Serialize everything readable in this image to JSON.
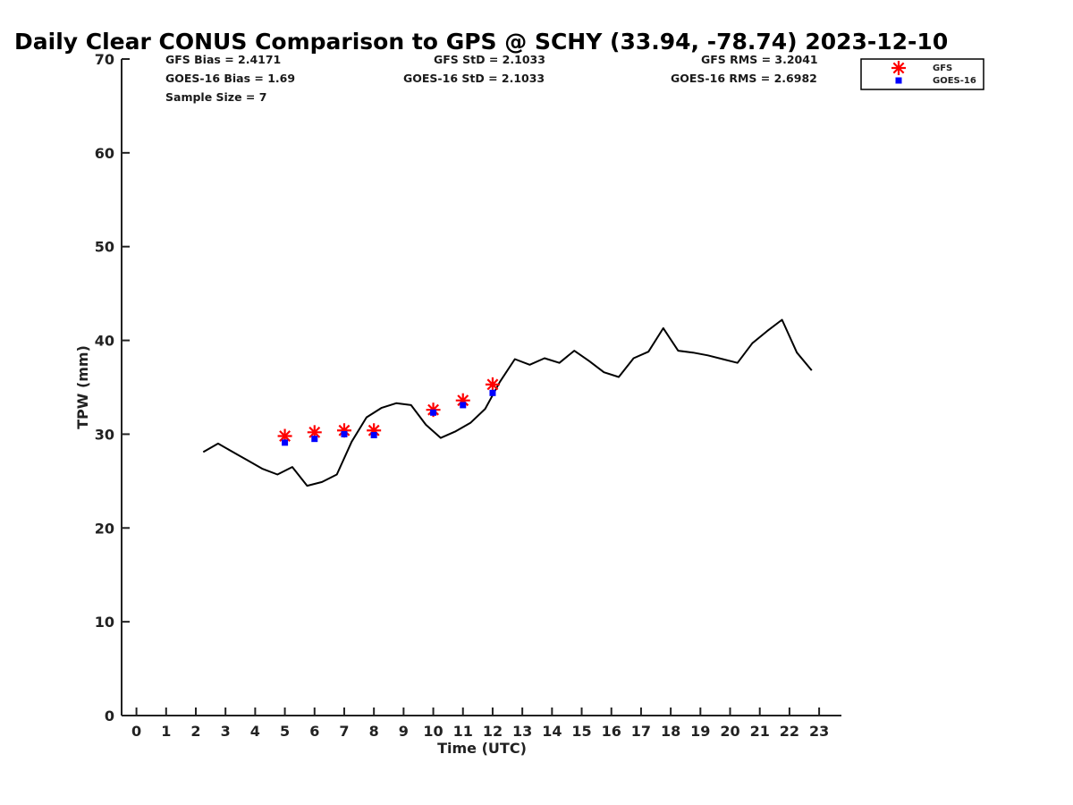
{
  "title": "Daily Clear CONUS Comparison to GPS @ SCHY (33.94, -78.74) 2023-12-10",
  "stats": {
    "gfs_bias": "GFS Bias = 2.4171",
    "goes_bias": "GOES-16 Bias = 1.69",
    "sample_size": "Sample Size = 7",
    "gfs_std": "GFS StD = 2.1033",
    "goes_std": "GOES-16 StD = 2.1033",
    "gfs_rms": "GFS RMS = 3.2041",
    "goes_rms": "GOES-16 RMS = 2.6982"
  },
  "colors": {
    "gps_line": "#000000",
    "gfs_marker": "#ff0000",
    "goes_marker": "#0000ff"
  },
  "chart_data": {
    "type": "line",
    "xlabel": "Time (UTC)",
    "ylabel": "TPW (mm)",
    "xlim": [
      -0.5,
      23.75
    ],
    "ylim": [
      0,
      70
    ],
    "x_ticks": [
      0,
      1,
      2,
      3,
      4,
      5,
      6,
      7,
      8,
      9,
      10,
      11,
      12,
      13,
      14,
      15,
      16,
      17,
      18,
      19,
      20,
      21,
      22,
      23
    ],
    "y_ticks": [
      0,
      10,
      20,
      30,
      40,
      50,
      60,
      70
    ],
    "grid": false,
    "legend_position": "top-right",
    "series": [
      {
        "marker": "line",
        "x": [
          2.25,
          2.75,
          3.25,
          3.75,
          4.25,
          4.75,
          5.25,
          5.75,
          6.25,
          6.75,
          7.25,
          7.75,
          8.25,
          8.75,
          9.25,
          9.75,
          10.25,
          10.75,
          11.25,
          11.75,
          12.25,
          12.75,
          13.25,
          13.75,
          14.25,
          14.75,
          15.25,
          15.75,
          16.25,
          16.75,
          17.25,
          17.75,
          18.25,
          18.75,
          19.25,
          19.75,
          20.25,
          20.75,
          21.25,
          21.75,
          22.25,
          22.75
        ],
        "y": [
          28.1,
          29.0,
          28.1,
          27.2,
          26.3,
          25.7,
          26.5,
          24.5,
          24.9,
          25.7,
          29.2,
          31.8,
          32.8,
          33.3,
          33.1,
          31.0,
          29.6,
          30.3,
          31.2,
          32.7,
          35.6,
          38.0,
          37.4,
          38.1,
          37.6,
          38.9,
          37.8,
          36.6,
          36.1,
          38.1,
          38.8,
          41.3,
          38.9,
          38.7,
          38.4,
          38.0,
          37.6,
          39.7,
          41.0,
          42.2,
          38.7,
          36.8
        ]
      },
      {
        "name": "GFS",
        "marker": "asterisk",
        "x": [
          5,
          6,
          7,
          8,
          10,
          11,
          12
        ],
        "y": [
          29.8,
          30.2,
          30.4,
          30.4,
          32.6,
          33.6,
          35.3
        ]
      },
      {
        "name": "GOES-16",
        "marker": "square",
        "x": [
          5,
          6,
          7,
          8,
          10,
          11,
          12
        ],
        "y": [
          29.1,
          29.5,
          30.0,
          29.9,
          32.3,
          33.1,
          34.4
        ]
      }
    ]
  }
}
